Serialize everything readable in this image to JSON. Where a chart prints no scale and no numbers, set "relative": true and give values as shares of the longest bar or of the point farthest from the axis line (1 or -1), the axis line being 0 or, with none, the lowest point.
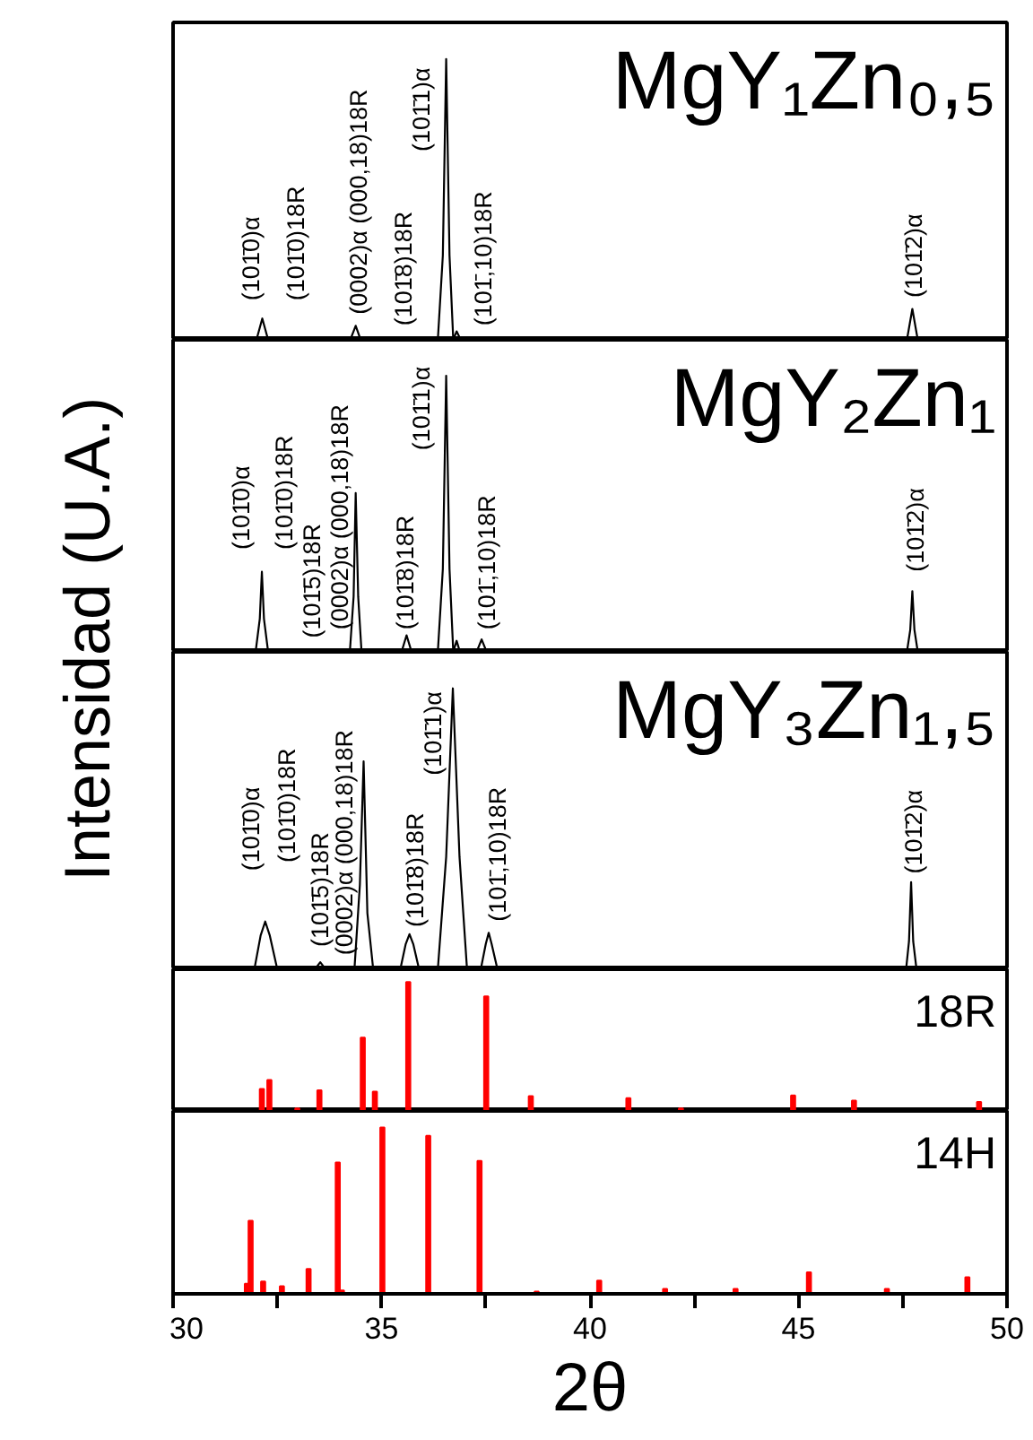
{
  "chart_data": [
    {
      "type": "line",
      "title": "MgY₁Zn₀,₅",
      "relative": true,
      "xlim": [
        30,
        50
      ],
      "tick_labels": false,
      "ylabel": "Intensidad (U.A.)",
      "series": [
        {
          "color": "#000000",
          "x": [
            30,
            32.0,
            32.14,
            32.28,
            34.25,
            34.38,
            34.5,
            36.35,
            36.47,
            36.55,
            36.63,
            36.72,
            36.8,
            36.9,
            47.6,
            47.73,
            47.86,
            50
          ],
          "values": [
            0,
            0,
            0.076,
            0,
            0,
            0.05,
            0,
            0,
            0.3,
            1,
            0.3,
            0,
            0.03,
            0,
            0,
            0.11,
            0,
            0
          ]
        }
      ],
      "annotations": [
        "(101̄0)α",
        "(101̄0)18R",
        "(0002)α (000,18)18R",
        "(101̄8)18R",
        "(101̄1)α",
        "(101̄,10)18R",
        "(101̄2)α"
      ]
    },
    {
      "type": "line",
      "title": "MgY₂Zn₁",
      "relative": true,
      "xlim": [
        30,
        50
      ],
      "tick_labels": false,
      "series": [
        {
          "color": "#000000",
          "x": [
            30,
            31.98,
            32.08,
            32.13,
            32.18,
            32.28,
            34.24,
            34.33,
            34.38,
            34.44,
            34.52,
            35.48,
            35.6,
            35.72,
            36.35,
            36.47,
            36.55,
            36.63,
            36.72,
            36.8,
            36.88,
            37.28,
            37.4,
            37.52,
            47.6,
            47.68,
            47.73,
            47.78,
            47.86,
            50
          ],
          "values": [
            0,
            0,
            0.12,
            0.29,
            0.12,
            0,
            0,
            0.2,
            0.575,
            0.2,
            0,
            0,
            0.06,
            0,
            0,
            0.3,
            1,
            0.3,
            0,
            0.04,
            0,
            0,
            0.045,
            0,
            0,
            0.08,
            0.22,
            0.08,
            0,
            0
          ]
        }
      ],
      "annotations": [
        "(101̄0)α",
        "(101̄0)18R",
        "(101̄5)18R",
        "(0002)α (000,18)18R",
        "(101̄8)18R",
        "(101̄1)α",
        "(101̄,10)18R",
        "(101̄2)α"
      ]
    },
    {
      "type": "line",
      "title": "MgY₃Zn₁,₅",
      "relative": true,
      "xlim": [
        30,
        50
      ],
      "tick_labels": false,
      "series": [
        {
          "color": "#000000",
          "x": [
            30,
            31.95,
            32.1,
            32.21,
            32.32,
            32.5,
            33.4,
            33.53,
            33.66,
            34.35,
            34.48,
            34.57,
            34.66,
            34.8,
            35.45,
            35.58,
            35.67,
            35.76,
            35.9,
            36.35,
            36.55,
            36.71,
            36.87,
            37.05,
            37.38,
            37.5,
            37.57,
            37.64,
            37.78,
            47.58,
            47.65,
            47.7,
            47.75,
            47.83,
            50
          ],
          "values": [
            0,
            0,
            0.12,
            0.17,
            0.12,
            0,
            0,
            0.025,
            0,
            0,
            0.3,
            0.74,
            0.2,
            0,
            0,
            0.09,
            0.125,
            0.09,
            0,
            0,
            0.4,
            1,
            0.4,
            0,
            0,
            0.09,
            0.13,
            0.09,
            0,
            0,
            0.1,
            0.31,
            0.1,
            0,
            0
          ]
        }
      ],
      "annotations": [
        "(101̄0)α",
        "(101̄0)18R",
        "(101̄5)18R",
        "(0002)α (000,18)18R",
        "(101̄8)18R",
        "(101̄1)α",
        "(101̄,10)18R",
        "(101̄2)α"
      ]
    },
    {
      "type": "bar",
      "title": "18R",
      "relative": true,
      "xlim": [
        30,
        50
      ],
      "tick_labels": false,
      "x": [
        32.13,
        32.31,
        32.98,
        33.51,
        34.55,
        34.84,
        35.64,
        37.51,
        38.58,
        40.92,
        42.18,
        44.87,
        46.33,
        49.33
      ],
      "values": [
        0.17,
        0.24,
        0.02,
        0.16,
        0.57,
        0.15,
        1,
        0.89,
        0.115,
        0.1,
        0.02,
        0.12,
        0.08,
        0.07
      ],
      "color": "#ff0000"
    },
    {
      "type": "bar",
      "title": "14H",
      "relative": true,
      "xlim": [
        30,
        50
      ],
      "tick_labels": "x",
      "xlabel": "2θ",
      "xticks": [
        30,
        {
          "value": 32.5,
          "label": null
        },
        35,
        {
          "value": 37.5,
          "label": null
        },
        40,
        {
          "value": 42.5,
          "label": null
        },
        45,
        {
          "value": 47.5,
          "label": null
        },
        50
      ],
      "x": [
        31.77,
        31.86,
        32.16,
        32.61,
        33.25,
        33.95,
        34.05,
        35.02,
        36.12,
        37.35,
        38.72,
        40.22,
        41.8,
        43.49,
        45.25,
        47.12,
        49.05
      ],
      "values": [
        0.06,
        0.44,
        0.074,
        0.046,
        0.15,
        0.79,
        0.02,
        1,
        0.95,
        0.8,
        0.014,
        0.08,
        0.03,
        0.03,
        0.13,
        0.03,
        0.1
      ],
      "color": "#ff0000"
    }
  ]
}
